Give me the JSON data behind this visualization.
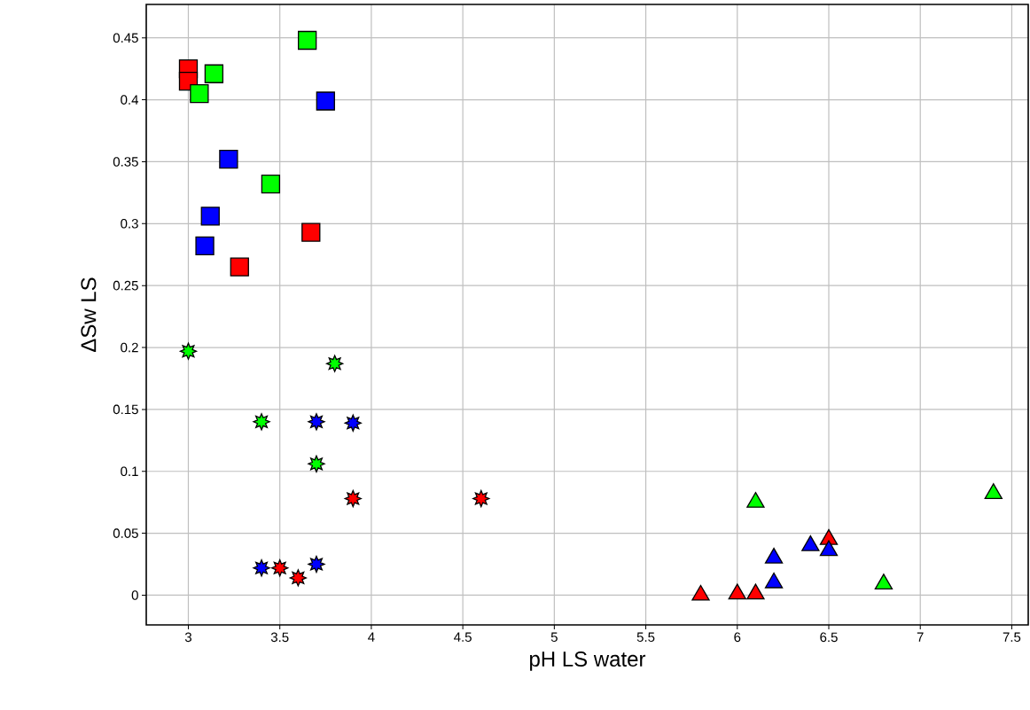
{
  "chart_data": {
    "type": "scatter",
    "xlabel": "pH LS water",
    "ylabel": "ΔSw LS",
    "xlim": [
      2.77,
      7.59
    ],
    "ylim": [
      -0.024,
      0.477
    ],
    "xticks": [
      3,
      3.5,
      4,
      4.5,
      5,
      5.5,
      6,
      6.5,
      7,
      7.5
    ],
    "yticks": [
      0,
      0.05,
      0.1,
      0.15,
      0.2,
      0.25,
      0.3,
      0.35,
      0.4,
      0.45
    ],
    "grid": true,
    "series": [
      {
        "color": "#ff0000",
        "marker": "square",
        "x": [
          3.0,
          3.0,
          3.28,
          3.67
        ],
        "values": [
          0.425,
          0.415,
          0.265,
          0.293
        ]
      },
      {
        "color": "#00ff00",
        "marker": "square",
        "x": [
          3.06,
          3.14,
          3.45,
          3.65
        ],
        "values": [
          0.405,
          0.421,
          0.332,
          0.448
        ]
      },
      {
        "color": "#0000ff",
        "marker": "square",
        "x": [
          3.09,
          3.12,
          3.22,
          3.75
        ],
        "values": [
          0.282,
          0.306,
          0.352,
          0.399
        ]
      },
      {
        "color": "#00ff00",
        "marker": "star",
        "x": [
          3.0,
          3.4,
          3.7,
          3.8
        ],
        "values": [
          0.197,
          0.14,
          0.106,
          0.187
        ]
      },
      {
        "color": "#0000ff",
        "marker": "star",
        "x": [
          3.4,
          3.7,
          3.7,
          3.9
        ],
        "values": [
          0.022,
          0.14,
          0.025,
          0.139
        ]
      },
      {
        "color": "#ff0000",
        "marker": "star",
        "x": [
          3.5,
          3.6,
          3.9,
          4.6
        ],
        "values": [
          0.022,
          0.014,
          0.078,
          0.078
        ]
      },
      {
        "color": "#ff0000",
        "marker": "triangle",
        "x": [
          5.8,
          6.0,
          6.1,
          6.5
        ],
        "values": [
          0.0,
          0.001,
          0.001,
          0.045
        ]
      },
      {
        "color": "#00ff00",
        "marker": "triangle",
        "x": [
          6.1,
          6.8,
          7.4
        ],
        "values": [
          0.075,
          0.009,
          0.082
        ]
      },
      {
        "color": "#0000ff",
        "marker": "triangle",
        "x": [
          6.2,
          6.2,
          6.4,
          6.5
        ],
        "values": [
          0.03,
          0.01,
          0.04,
          0.036
        ]
      }
    ]
  }
}
